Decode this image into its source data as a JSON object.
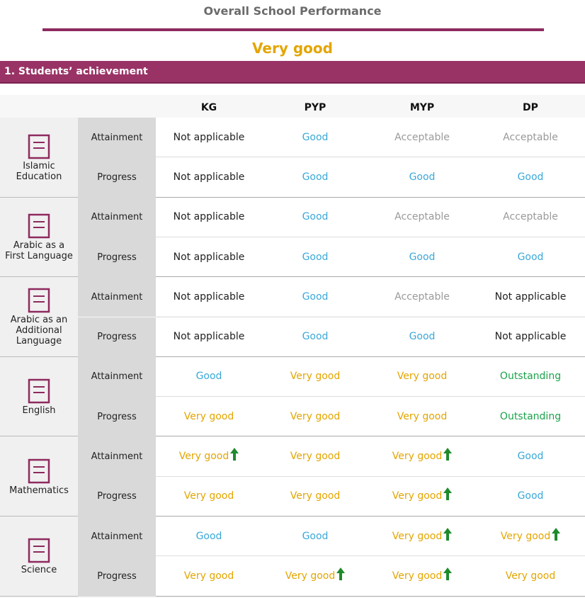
{
  "header": {
    "title": "Overall School Performance",
    "overall": "Very good"
  },
  "section": {
    "title": "1. Students’ achievement"
  },
  "table": {
    "columns": [
      "KG",
      "PYP",
      "MYP",
      "DP"
    ],
    "subjects": [
      {
        "name": "Islamic Education",
        "rows": [
          {
            "label": "Attainment",
            "cells": [
              {
                "text": "Not applicable",
                "color": "#222222"
              },
              {
                "text": "Good",
                "color": "#3aa8d8"
              },
              {
                "text": "Acceptable",
                "color": "#9a9a9a"
              },
              {
                "text": "Acceptable",
                "color": "#9a9a9a"
              }
            ]
          },
          {
            "label": "Progress",
            "cells": [
              {
                "text": "Not applicable",
                "color": "#222222"
              },
              {
                "text": "Good",
                "color": "#3aa8d8"
              },
              {
                "text": "Good",
                "color": "#3aa8d8"
              },
              {
                "text": "Good",
                "color": "#3aa8d8"
              }
            ]
          }
        ]
      },
      {
        "name": "Arabic as a First Language",
        "rows": [
          {
            "label": "Attainment",
            "cells": [
              {
                "text": "Not applicable",
                "color": "#222222"
              },
              {
                "text": "Good",
                "color": "#3aa8d8"
              },
              {
                "text": "Acceptable",
                "color": "#9a9a9a"
              },
              {
                "text": "Acceptable",
                "color": "#9a9a9a"
              }
            ]
          },
          {
            "label": "Progress",
            "cells": [
              {
                "text": "Not applicable",
                "color": "#222222"
              },
              {
                "text": "Good",
                "color": "#3aa8d8"
              },
              {
                "text": "Good",
                "color": "#3aa8d8"
              },
              {
                "text": "Good",
                "color": "#3aa8d8"
              }
            ]
          }
        ]
      },
      {
        "name": "Arabic as an Additional Language",
        "rows": [
          {
            "label": "Attainment",
            "cells": [
              {
                "text": "Not applicable",
                "color": "#222222"
              },
              {
                "text": "Good",
                "color": "#3aa8d8"
              },
              {
                "text": "Acceptable",
                "color": "#9a9a9a"
              },
              {
                "text": "Not applicable",
                "color": "#222222"
              }
            ]
          },
          {
            "label": "Progress",
            "cells": [
              {
                "text": "Not applicable",
                "color": "#222222"
              },
              {
                "text": "Good",
                "color": "#3aa8d8"
              },
              {
                "text": "Good",
                "color": "#3aa8d8"
              },
              {
                "text": "Not applicable",
                "color": "#222222"
              }
            ]
          }
        ]
      },
      {
        "name": "English",
        "rows": [
          {
            "label": "Attainment",
            "cells": [
              {
                "text": "Good",
                "color": "#3aa8d8"
              },
              {
                "text": "Very good",
                "color": "#e3a500"
              },
              {
                "text": "Very good",
                "color": "#e3a500"
              },
              {
                "text": "Outstanding",
                "color": "#1aa34a"
              }
            ]
          },
          {
            "label": "Progress",
            "cells": [
              {
                "text": "Very good",
                "color": "#e3a500"
              },
              {
                "text": "Very good",
                "color": "#e3a500"
              },
              {
                "text": "Very good",
                "color": "#e3a500"
              },
              {
                "text": "Outstanding",
                "color": "#1aa34a"
              }
            ]
          }
        ]
      },
      {
        "name": "Mathematics",
        "rows": [
          {
            "label": "Attainment",
            "cells": [
              {
                "text": "Very good",
                "color": "#e3a500",
                "arrow": true
              },
              {
                "text": "Very good",
                "color": "#e3a500"
              },
              {
                "text": "Very good",
                "color": "#e3a500",
                "arrow": true
              },
              {
                "text": "Good",
                "color": "#3aa8d8"
              }
            ]
          },
          {
            "label": "Progress",
            "cells": [
              {
                "text": "Very good",
                "color": "#e3a500"
              },
              {
                "text": "Very good",
                "color": "#e3a500"
              },
              {
                "text": "Very good",
                "color": "#e3a500",
                "arrow": true
              },
              {
                "text": "Good",
                "color": "#3aa8d8"
              }
            ]
          }
        ]
      },
      {
        "name": "Science",
        "rows": [
          {
            "label": "Attainment",
            "cells": [
              {
                "text": "Good",
                "color": "#3aa8d8"
              },
              {
                "text": "Good",
                "color": "#3aa8d8"
              },
              {
                "text": "Very good",
                "color": "#e3a500",
                "arrow": true
              },
              {
                "text": "Very good",
                "color": "#e3a500",
                "arrow": true
              }
            ]
          },
          {
            "label": "Progress",
            "cells": [
              {
                "text": "Very good",
                "color": "#e3a500"
              },
              {
                "text": "Very good",
                "color": "#e3a500",
                "arrow": true
              },
              {
                "text": "Very good",
                "color": "#e3a500",
                "arrow": true
              },
              {
                "text": "Very good",
                "color": "#e3a500"
              }
            ]
          }
        ]
      }
    ]
  }
}
